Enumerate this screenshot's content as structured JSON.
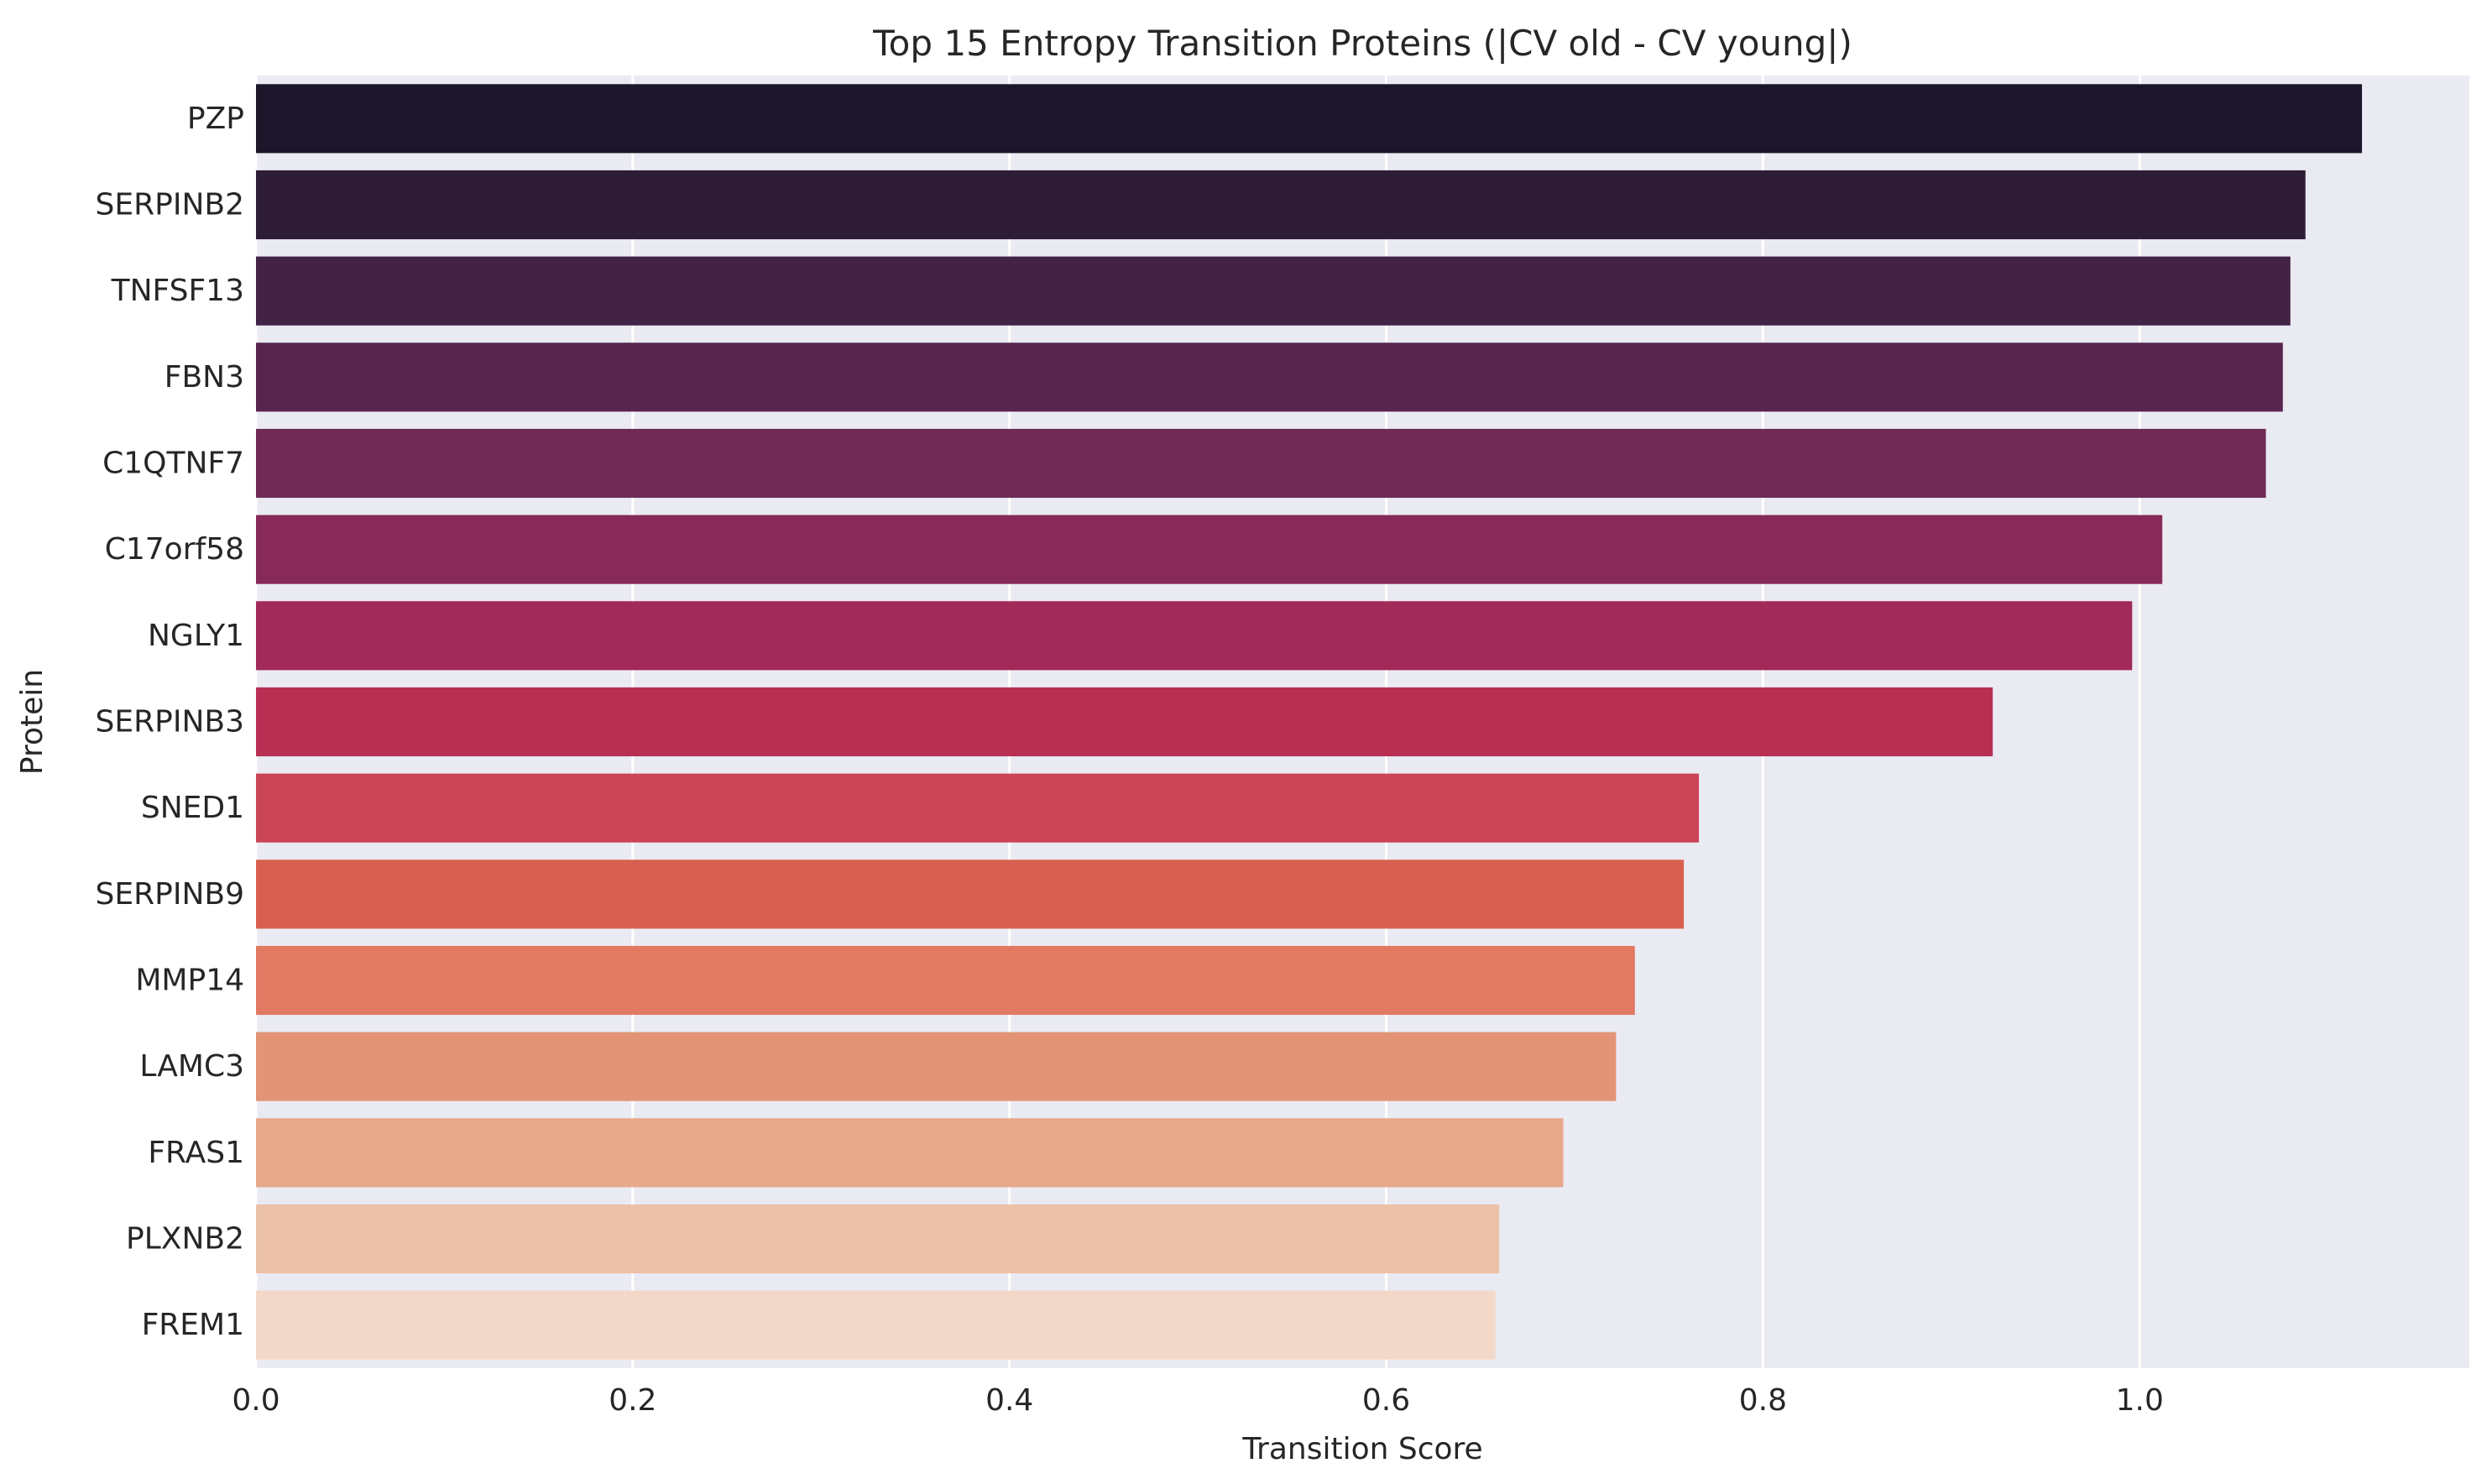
{
  "chart_data": {
    "type": "bar",
    "orientation": "horizontal",
    "title": "Top 15 Entropy Transition Proteins (|CV old - CV young|)",
    "xlabel": "Transition Score",
    "ylabel": "Protein",
    "xlim": [
      0,
      1.175
    ],
    "xticks": [
      0.0,
      0.2,
      0.4,
      0.6,
      0.8,
      1.0
    ],
    "xtick_labels": [
      "0.0",
      "0.2",
      "0.4",
      "0.6",
      "0.8",
      "1.0"
    ],
    "grid": true,
    "background": "#eaeaf2",
    "gridColor": "#ffffff",
    "categories": [
      "PZP",
      "SERPINB2",
      "TNFSF13",
      "FBN3",
      "C1QTNF7",
      "C17orf58",
      "NGLY1",
      "SERPINB3",
      "SNED1",
      "SERPINB9",
      "MMP14",
      "LAMC3",
      "FRAS1",
      "PLXNB2",
      "FREM1"
    ],
    "values": [
      1.118,
      1.088,
      1.08,
      1.076,
      1.067,
      1.012,
      0.996,
      0.922,
      0.766,
      0.758,
      0.732,
      0.722,
      0.694,
      0.66,
      0.658
    ],
    "colors": [
      "#1b1629",
      "#2f1d38",
      "#422245",
      "#58254f",
      "#6f2a55",
      "#872a58",
      "#a12a58",
      "#b82f54",
      "#ca4657",
      "#d96051",
      "#e27963",
      "#e39476",
      "#e7a98b",
      "#ecc1a9",
      "#f2d8c9"
    ]
  }
}
